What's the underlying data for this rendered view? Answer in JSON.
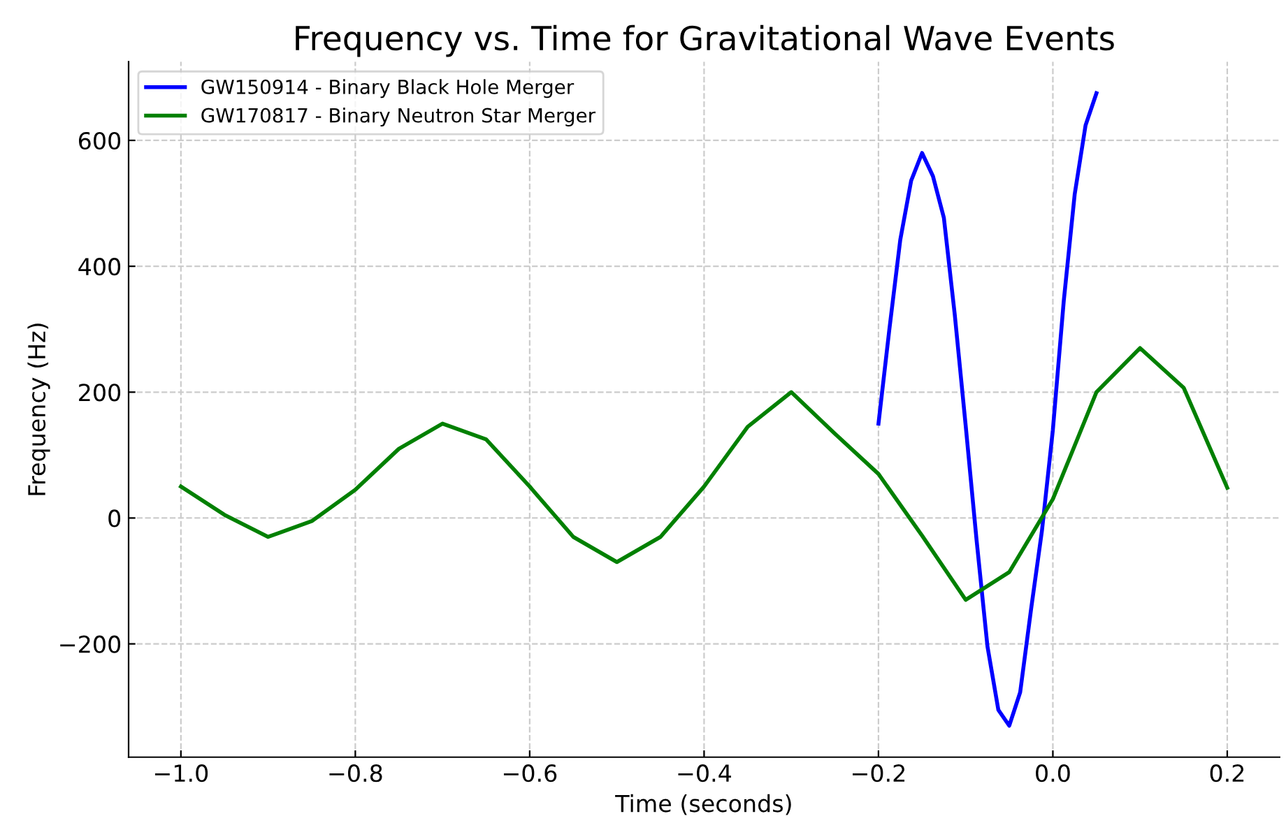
{
  "chart_data": {
    "type": "line",
    "title": "Frequency vs. Time for Gravitational Wave Events",
    "xlabel": "Time (seconds)",
    "ylabel": "Frequency (Hz)",
    "xlim": [
      -1.06,
      0.26
    ],
    "ylim": [
      -380,
      725
    ],
    "xticks": [
      {
        "value": -1.0,
        "label": "−1.0"
      },
      {
        "value": -0.8,
        "label": "−0.8"
      },
      {
        "value": -0.6,
        "label": "−0.6"
      },
      {
        "value": -0.4,
        "label": "−0.4"
      },
      {
        "value": -0.2,
        "label": "−0.2"
      },
      {
        "value": 0.0,
        "label": "0.0"
      },
      {
        "value": 0.2,
        "label": "0.2"
      }
    ],
    "yticks": [
      {
        "value": -200,
        "label": "−200"
      },
      0,
      200,
      400,
      600
    ],
    "grid": true,
    "legend": "top left",
    "line_style": "solid",
    "marker": "none",
    "series": [
      {
        "name": "GW150914 - Binary Black Hole Merger",
        "color": "#0000ff",
        "x": [
          -0.2,
          -0.1875,
          -0.175,
          -0.1625,
          -0.15,
          -0.1375,
          -0.125,
          -0.1125,
          -0.1,
          -0.0875,
          -0.075,
          -0.0625,
          -0.05,
          -0.0375,
          -0.025,
          -0.0125,
          0,
          0.0125,
          0.025,
          0.0375,
          0.05
        ],
        "values": [
          150,
          300,
          442,
          536,
          580,
          543,
          477,
          323,
          147,
          -35,
          -204,
          -305,
          -330,
          -277,
          -145,
          -20,
          140,
          345,
          514,
          624,
          675
        ]
      },
      {
        "name": "GW170817 - Binary Neutron Star Merger",
        "color": "#008000",
        "x": [
          -1.0,
          -0.95,
          -0.9,
          -0.85,
          -0.8,
          -0.75,
          -0.7,
          -0.65,
          -0.6,
          -0.55,
          -0.5,
          -0.45,
          -0.4,
          -0.35,
          -0.3,
          -0.25,
          -0.2,
          -0.15,
          -0.1,
          -0.05,
          0,
          0.05,
          0.1,
          0.15,
          0.2
        ],
        "values": [
          50,
          5,
          -30,
          -5,
          45,
          110,
          150,
          125,
          50,
          -30,
          -70,
          -30,
          50,
          145,
          200,
          134,
          70,
          -28,
          -130,
          -86,
          30,
          200,
          270,
          207,
          48
        ]
      }
    ]
  }
}
